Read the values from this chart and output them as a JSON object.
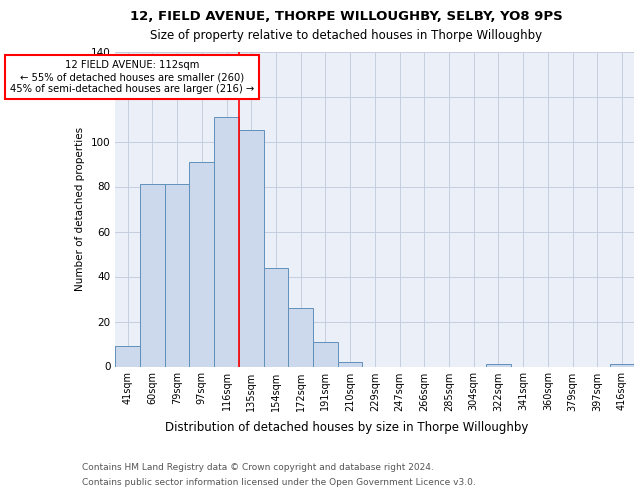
{
  "title1": "12, FIELD AVENUE, THORPE WILLOUGHBY, SELBY, YO8 9PS",
  "title2": "Size of property relative to detached houses in Thorpe Willoughby",
  "xlabel": "Distribution of detached houses by size in Thorpe Willoughby",
  "ylabel": "Number of detached properties",
  "footnote1": "Contains HM Land Registry data © Crown copyright and database right 2024.",
  "footnote2": "Contains public sector information licensed under the Open Government Licence v3.0.",
  "categories": [
    "41sqm",
    "60sqm",
    "79sqm",
    "97sqm",
    "116sqm",
    "135sqm",
    "154sqm",
    "172sqm",
    "191sqm",
    "210sqm",
    "229sqm",
    "247sqm",
    "266sqm",
    "285sqm",
    "304sqm",
    "322sqm",
    "341sqm",
    "360sqm",
    "379sqm",
    "397sqm",
    "416sqm"
  ],
  "values": [
    9,
    81,
    81,
    91,
    111,
    105,
    44,
    26,
    11,
    2,
    0,
    0,
    0,
    0,
    0,
    1,
    0,
    0,
    0,
    0,
    1
  ],
  "bar_color": "#ccd9ed",
  "bar_edge_color": "#6090bb",
  "grid_color": "#c5cfe0",
  "background_color": "#eaeff8",
  "property_line_x": 4.5,
  "annotation_text1": "12 FIELD AVENUE: 112sqm",
  "annotation_text2": "← 55% of detached houses are smaller (260)",
  "annotation_text3": "45% of semi-detached houses are larger (216) →",
  "annotation_box_facecolor": "white",
  "annotation_box_edgecolor": "red",
  "vline_color": "red",
  "ylim": [
    0,
    140
  ],
  "yticks": [
    0,
    20,
    40,
    60,
    80,
    100,
    120,
    140
  ],
  "title1_fontsize": 9.5,
  "title2_fontsize": 8.5,
  "ylabel_fontsize": 7.5,
  "xlabel_fontsize": 8.5,
  "tick_fontsize": 7,
  "footnote_fontsize": 6.5
}
